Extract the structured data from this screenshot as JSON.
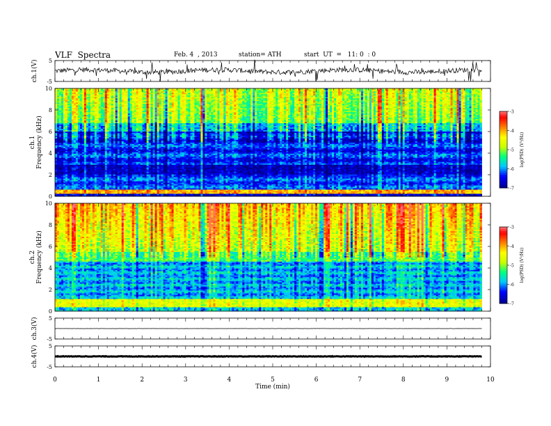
{
  "header": {
    "title": "VLF  Spectra",
    "date": "Feb. 4  , 2013",
    "station": "station= ATH",
    "start": "start  UT  =   11: 0  : 0"
  },
  "chart_data": [
    {
      "type": "line",
      "panel": "ch.1 waveform",
      "ylabel": "ch.1(V)",
      "ylim": [
        -5,
        5
      ],
      "yticks": [
        5,
        -5
      ],
      "baseline": 0,
      "x_range": [
        0,
        9.8
      ]
    },
    {
      "type": "heatmap",
      "panel": "ch.1 spectrogram",
      "ylabel_channel": "ch.1",
      "ylabel": "Frequency  (kHz)",
      "ylim": [
        0,
        10
      ],
      "yticks": [
        0,
        2,
        4,
        6,
        8,
        10
      ],
      "colorbar_label": "log(PSD) (V²/Hz)",
      "colorbar_range": [
        -7,
        -3
      ],
      "colorbar_ticks": [
        "-3",
        "-4",
        "-5",
        "-6",
        "-7"
      ],
      "x_range": [
        0,
        9.8
      ]
    },
    {
      "type": "heatmap",
      "panel": "ch.2 spectrogram",
      "ylabel_channel": "ch.2",
      "ylabel": "Frequency  (kHz)",
      "ylim": [
        0,
        10
      ],
      "yticks": [
        0,
        2,
        4,
        6,
        8,
        10
      ],
      "colorbar_label": "log(PSD) (V²/Hz)",
      "colorbar_range": [
        -7,
        -3
      ],
      "colorbar_ticks": [
        "-3",
        "-4",
        "-5",
        "-6",
        "-7"
      ],
      "x_range": [
        0,
        9.8
      ]
    },
    {
      "type": "line",
      "panel": "ch.3 waveform",
      "ylabel": "ch.3(V)",
      "ylim": [
        -5,
        5
      ],
      "yticks": [
        5,
        -5
      ],
      "baseline": 0,
      "x_range": [
        0,
        9.8
      ]
    },
    {
      "type": "line",
      "panel": "ch.4 waveform",
      "ylabel": "ch.4(V)",
      "ylim": [
        -5,
        5
      ],
      "yticks": [
        5,
        -5
      ],
      "baseline": 0,
      "x_range": [
        0,
        9.8
      ]
    }
  ],
  "xaxis": {
    "label": "Time  (min)",
    "xlim": [
      0,
      10
    ],
    "ticks": [
      "0",
      "1",
      "2",
      "3",
      "4",
      "5",
      "6",
      "7",
      "8",
      "9",
      "10"
    ]
  },
  "colors": {
    "axis": "#000000",
    "colormap": [
      "#000000",
      "#0000a0",
      "#0000ff",
      "#00c8ff",
      "#00ff80",
      "#c8ff00",
      "#ffff00",
      "#ff8000",
      "#ff0000",
      "#ffc0c0",
      "#ffffff"
    ]
  }
}
